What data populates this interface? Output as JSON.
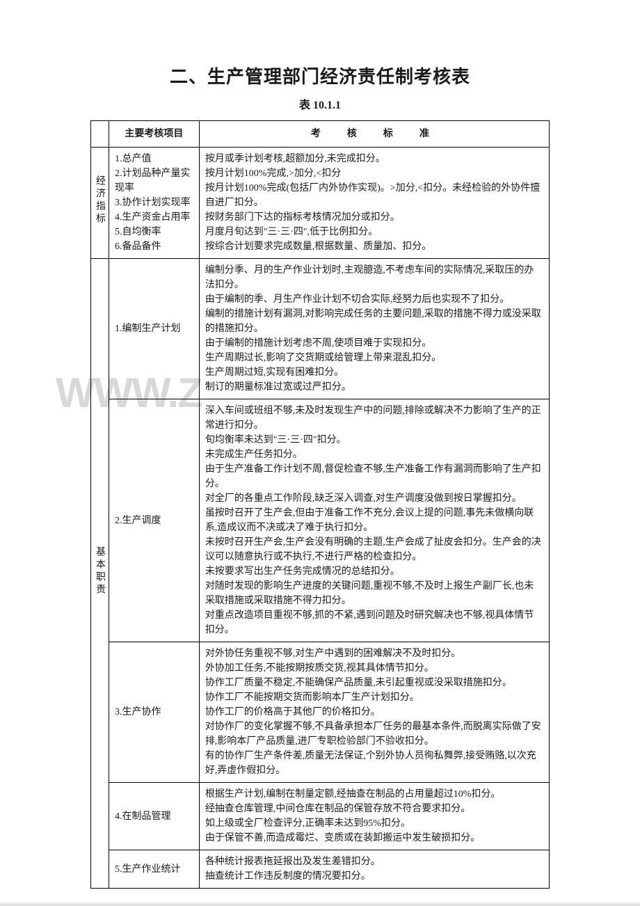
{
  "title": "二、生产管理部门经济责任制考核表",
  "subtitle": "表 10.1.1",
  "watermark": "WWW.Z",
  "headers": {
    "col1": "",
    "col2": "主要考核项目",
    "col3": "考　核　标　准"
  },
  "rows": [
    {
      "group_label": "经济指标",
      "group_rowspan": 1,
      "items": [
        {
          "item": "1.总产值\n2.计划品种产量实现率\n3.协作计划实现率\n4.生产资金占用率\n5.自均衡率\n6.备品备件",
          "criteria": "按月或季计划考核,超额加分,未完成扣分。\n按月计划100%完成,>加分,<扣分\n按月计划100%完成(包括厂内外协作实现)。>加分,<扣分。未经检验的外协件擅自进厂扣分。\n按财务部门下达的指标考核情况加分或扣分。\n月度月旬达到\"三·三·四\",低于比例扣分。\n按综合计划要求完成数量,根据数量、质量加、扣分。"
        }
      ]
    },
    {
      "group_label": "基本职责",
      "group_rowspan": 5,
      "items": [
        {
          "item": "1.编制生产计划",
          "criteria": "编制分季、月的生产作业计划时,主观臆造,不考虑车间的实际情况,采取压的办法扣分。\n由于编制的季、月生产作业计划不切合实际,经努力后也实现不了扣分。\n编制的措施计划有漏洞,对影响完成任务的主要问题,采取的措施不得力或没采取的措施扣分。\n由于编制的措施计划考虑不周,使项目难于实现扣分。\n生产周期过长,影响了交货期或给管理上带来混乱扣分。\n生产周期过短,实现有困难扣分。\n制订的期量标准过宽或过严扣分。"
        },
        {
          "item": "2.生产调度",
          "criteria": "深入车间或班组不够,未及时发现生产中的问题,排除或解决不力影响了生产的正常进行扣分。\n旬均衡率未达到\"三·三·四\"扣分。\n未完成生产任务扣分。\n由于生产准备工作计划不周,督促检查不够,生产准备工作有漏洞而影响了生产扣分。\n对全厂的各重点工作阶段,缺乏深入调查,对生产调度没做到按日掌握扣分。\n虽按时召开了生产会,但由于准备工作不充分,会议上提的问题,事先未做横向联系,造成议而不决或决了难于执行扣分。\n未按时召开生产会,生产会没有明确的主题,生产会成了扯皮会扣分。生产会的决议可以随意执行或不执行,不进行严格的检查扣分。\n未按要求写出生产任务完成情况的总结扣分。\n对随时发现的影响生产进度的关键问题,重视不够,不及时上报生产副厂长,也未采取措施或采取措施不得力扣分。\n对重点改造项目重视不够,抓的不紧,遇到问题及时研究解决也不够,视具体情节扣分。"
        },
        {
          "item": "3.生产协作",
          "criteria": "对外协任务重视不够,对生产中遇到的困难解决不及时扣分。\n外协加工任务,不能按期按质交货,视其具体情节扣分。\n协作工厂质量不稳定,不能确保产品质量,未引起重视或没采取措施扣分。\n协作工厂不能按期交货而影响本厂生产计划扣分。\n协作工厂的价格高于其他厂的价格扣分。\n对协作厂的变化掌握不够,不具备承担本厂任务的最基本条件,而脱离实际做了安排,影响本厂产品质量,进厂专职检验部门不验收扣分。\n有的协作厂生产条件差,质量无法保证,个别外协人员徇私舞弊,接受贿赂,以次充好,弄虚作假扣分。"
        },
        {
          "item": "4.在制品管理",
          "criteria": "根据生产计划,编制在制量定额,经抽查在制品的占用量超过10%扣分。\n经抽查仓库管理,中间仓库在制品的保管存放不符合要求扣分。\n如上级或全厂检查评分,正确率未达到95%扣分。\n由于保管不善,而造成霉烂、变质或在装卸搬运中发生破损扣分。"
        },
        {
          "item": "5.生产作业统计",
          "criteria": "各种统计报表拖延报出及发生差错扣分。\n抽查统计工作违反制度的情况要扣分。"
        }
      ]
    }
  ]
}
